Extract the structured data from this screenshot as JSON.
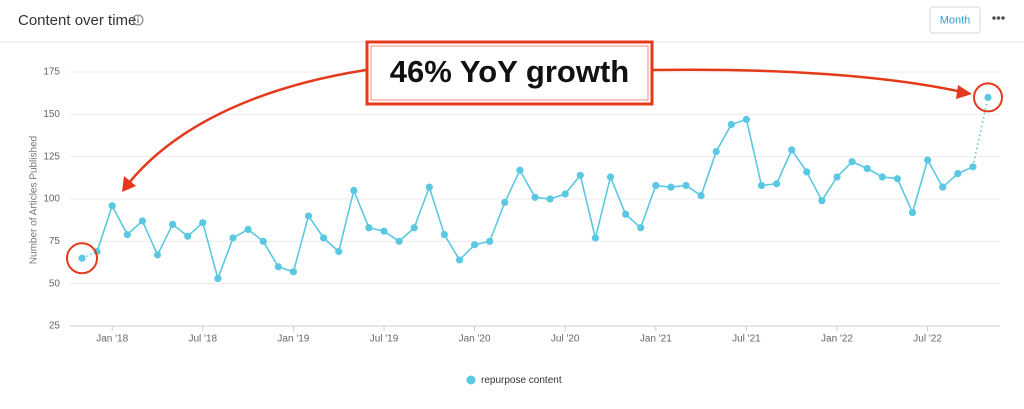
{
  "chart_data": {
    "type": "line",
    "title": "Content over time",
    "y_label": "Number of Articles Published",
    "annotation": "46% YoY growth",
    "categories": [
      null,
      null,
      "Jan '18",
      null,
      null,
      null,
      null,
      null,
      "Jul '18",
      null,
      null,
      null,
      null,
      null,
      "Jan '19",
      null,
      null,
      null,
      null,
      null,
      "Jul '19",
      null,
      null,
      null,
      null,
      null,
      "Jan '20",
      null,
      null,
      null,
      null,
      null,
      "Jul '20",
      null,
      null,
      null,
      null,
      null,
      "Jan '21",
      null,
      null,
      null,
      null,
      null,
      "Jul '21",
      null,
      null,
      null,
      null,
      null,
      "Jan '22",
      null,
      null,
      null,
      null,
      null,
      "Jul '22",
      null,
      null,
      null,
      null
    ],
    "series": [
      {
        "name": "repurpose content",
        "color": "#5bc8e2",
        "values": [
          65,
          69,
          96,
          79,
          87,
          67,
          85,
          78,
          86,
          53,
          77,
          82,
          75,
          60,
          57,
          90,
          77,
          69,
          105,
          83,
          81,
          75,
          83,
          107,
          79,
          64,
          73,
          75,
          98,
          117,
          101,
          100,
          103,
          114,
          77,
          113,
          91,
          83,
          108,
          107,
          108,
          102,
          128,
          144,
          147,
          108,
          109,
          129,
          116,
          99,
          113,
          122,
          118,
          113,
          112,
          92,
          123,
          107,
          115,
          119,
          160
        ]
      }
    ],
    "ylim": [
      25,
      175
    ],
    "yticks": [
      25,
      50,
      75,
      100,
      125,
      150,
      175
    ],
    "grid": true
  },
  "controls": {
    "period_button": "Month"
  }
}
